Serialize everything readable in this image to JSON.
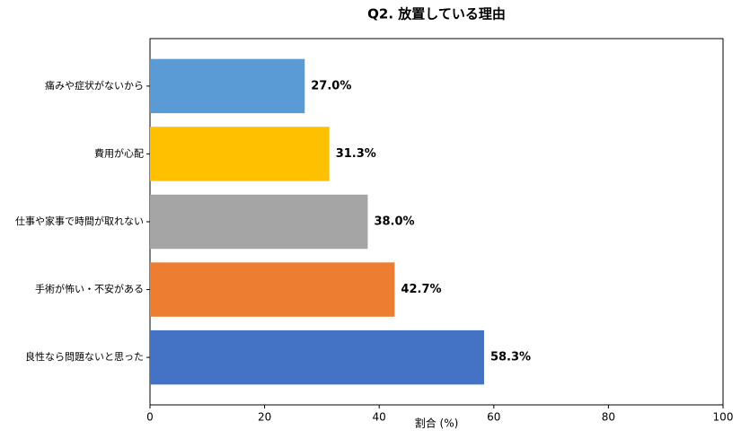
{
  "chart_data": {
    "type": "barh",
    "title": "Q2. 放置している理由",
    "xlabel": "割合 (%)",
    "categories": [
      "痛みや症状がないから",
      "費用が心配",
      "仕事や家事で時間が取れない",
      "手術が怖い・不安がある",
      "良性なら問題ないと思った"
    ],
    "values": [
      27.0,
      31.3,
      38.0,
      42.7,
      58.3
    ],
    "value_labels": [
      "27.0%",
      "31.3%",
      "38.0%",
      "42.7%",
      "58.3%"
    ],
    "colors": [
      "#5b9bd5",
      "#ffc000",
      "#a5a5a5",
      "#ed7d31",
      "#4472c4"
    ],
    "xlim": [
      0,
      100
    ],
    "xticks": [
      0,
      20,
      40,
      60,
      80,
      100
    ]
  }
}
